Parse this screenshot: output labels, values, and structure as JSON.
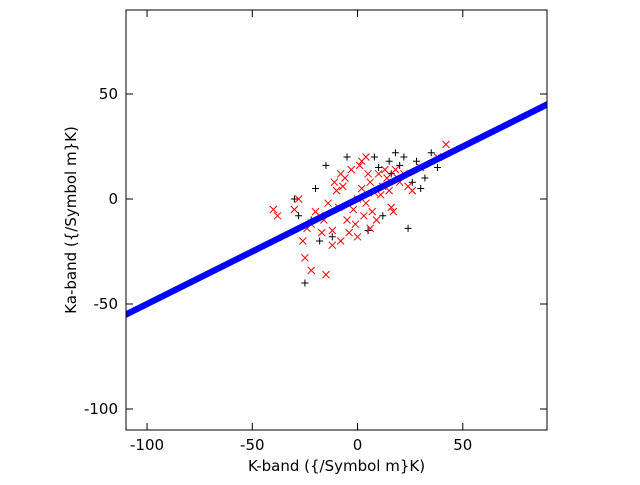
{
  "chart_data": {
    "type": "scatter",
    "title": "",
    "xlabel": "K-band ({/Symbol m}K)",
    "ylabel": "Ka-band ({/Symbol m}K)",
    "xlim": [
      -110,
      90
    ],
    "ylim": [
      -110,
      90
    ],
    "xticks": [
      -100,
      -50,
      0,
      50
    ],
    "yticks": [
      -100,
      -50,
      0,
      50
    ],
    "xtick_labels": [
      "-100",
      "-50",
      "0",
      "50"
    ],
    "ytick_labels": [
      "-100",
      "-50",
      "0",
      "50"
    ],
    "grid": false,
    "legend": "none",
    "series": [
      {
        "marker": "plus",
        "color": "#000000",
        "points": [
          [
            -25,
            -40
          ],
          [
            35,
            22
          ],
          [
            38,
            15
          ],
          [
            32,
            10
          ],
          [
            28,
            18
          ],
          [
            24,
            -14
          ],
          [
            22,
            20
          ],
          [
            20,
            16
          ],
          [
            26,
            8
          ],
          [
            18,
            22
          ],
          [
            30,
            5
          ],
          [
            15,
            18
          ],
          [
            -5,
            20
          ],
          [
            -15,
            16
          ],
          [
            -20,
            5
          ],
          [
            -22,
            -10
          ],
          [
            -18,
            -20
          ],
          [
            12,
            -8
          ],
          [
            16,
            12
          ],
          [
            10,
            15
          ],
          [
            -30,
            0
          ],
          [
            -28,
            -8
          ],
          [
            -12,
            -18
          ],
          [
            8,
            20
          ],
          [
            5,
            -15
          ]
        ]
      },
      {
        "marker": "cross",
        "color": "#ff0000",
        "points": [
          [
            -40,
            -5
          ],
          [
            -38,
            -8
          ],
          [
            -25,
            -28
          ],
          [
            -22,
            -34
          ],
          [
            -15,
            -36
          ],
          [
            42,
            26
          ],
          [
            38,
            20
          ],
          [
            30,
            15
          ],
          [
            -30,
            -5
          ],
          [
            -28,
            0
          ],
          [
            -22,
            -12
          ],
          [
            -18,
            -8
          ],
          [
            -12,
            -15
          ],
          [
            -8,
            -20
          ],
          [
            -5,
            -10
          ],
          [
            -2,
            -5
          ],
          [
            0,
            0
          ],
          [
            2,
            5
          ],
          [
            4,
            -2
          ],
          [
            6,
            8
          ],
          [
            8,
            3
          ],
          [
            10,
            12
          ],
          [
            12,
            6
          ],
          [
            14,
            10
          ],
          [
            16,
            -4
          ],
          [
            18,
            14
          ],
          [
            20,
            8
          ],
          [
            -10,
            4
          ],
          [
            -6,
            10
          ],
          [
            -3,
            14
          ],
          [
            1,
            16
          ],
          [
            3,
            -8
          ],
          [
            -14,
            -2
          ],
          [
            -20,
            -6
          ],
          [
            5,
            12
          ],
          [
            7,
            -6
          ],
          [
            9,
            -10
          ],
          [
            11,
            2
          ],
          [
            -16,
            -10
          ],
          [
            -4,
            -16
          ],
          [
            -1,
            -12
          ],
          [
            13,
            14
          ],
          [
            15,
            4
          ],
          [
            17,
            -6
          ],
          [
            19,
            10
          ],
          [
            -7,
            6
          ],
          [
            -9,
            -4
          ],
          [
            -11,
            8
          ],
          [
            22,
            12
          ],
          [
            24,
            6
          ],
          [
            -24,
            -14
          ],
          [
            -26,
            -20
          ],
          [
            0,
            -18
          ],
          [
            2,
            18
          ],
          [
            -12,
            -22
          ],
          [
            6,
            -14
          ],
          [
            26,
            4
          ],
          [
            -8,
            12
          ],
          [
            4,
            20
          ],
          [
            -17,
            -16
          ]
        ]
      },
      {
        "marker": "dot",
        "color": "#0000ff",
        "line_fit": {
          "slope": 0.5,
          "intercept": 0.0
        }
      }
    ]
  }
}
